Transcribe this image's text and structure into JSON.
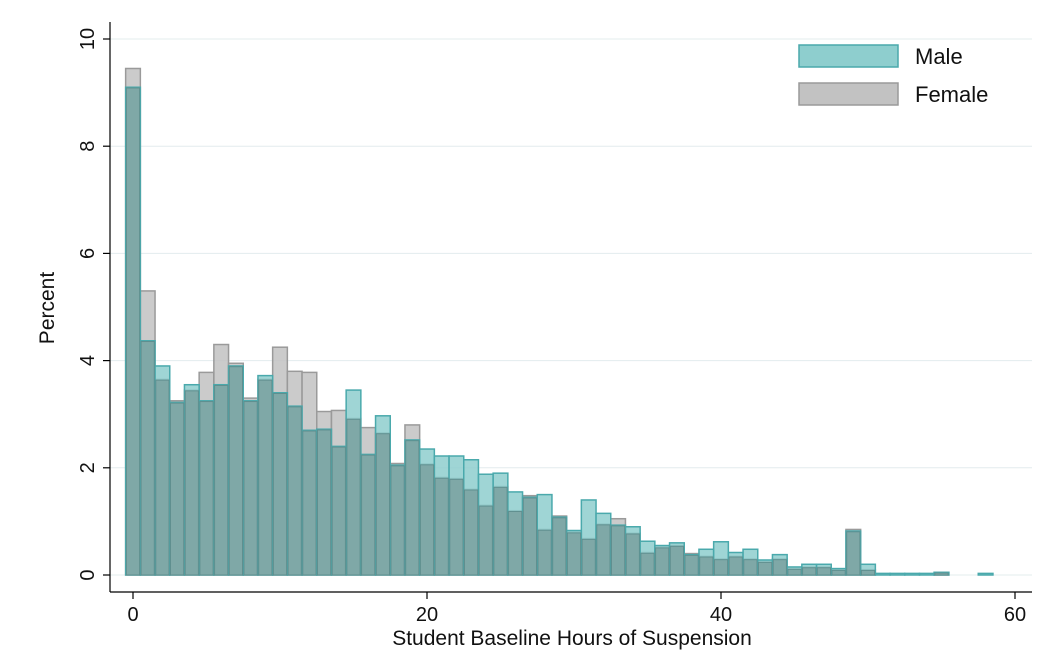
{
  "chart_data": {
    "type": "bar",
    "xlabel": "Student Baseline Hours of Suspension",
    "ylabel": "Percent",
    "xlim": [
      -1,
      61
    ],
    "ylim": [
      0,
      10
    ],
    "xticks": [
      0,
      20,
      40,
      60
    ],
    "yticks": [
      0,
      2,
      4,
      6,
      8,
      10
    ],
    "grid": "horizontal",
    "legend": "top-right",
    "bin_width": 1,
    "x": [
      0,
      1,
      2,
      3,
      4,
      5,
      6,
      7,
      8,
      9,
      10,
      11,
      12,
      13,
      14,
      15,
      16,
      17,
      18,
      19,
      20,
      21,
      22,
      23,
      24,
      25,
      26,
      27,
      28,
      29,
      30,
      31,
      32,
      33,
      34,
      35,
      36,
      37,
      38,
      39,
      40,
      41,
      42,
      43,
      44,
      45,
      46,
      47,
      48,
      49,
      50,
      51,
      52,
      53,
      54,
      55,
      56,
      57,
      58
    ],
    "series": [
      {
        "name": "Male",
        "color": "#8ecece",
        "edge": "#4aa9ac",
        "values": [
          9.1,
          4.37,
          3.9,
          3.22,
          3.55,
          3.25,
          3.55,
          3.9,
          3.25,
          3.72,
          3.4,
          3.15,
          2.7,
          2.72,
          2.4,
          3.45,
          2.25,
          2.97,
          2.05,
          2.52,
          2.35,
          2.22,
          2.22,
          2.15,
          1.88,
          1.9,
          1.55,
          1.45,
          1.5,
          1.08,
          0.83,
          1.4,
          1.15,
          0.93,
          0.9,
          0.63,
          0.55,
          0.6,
          0.38,
          0.48,
          0.62,
          0.42,
          0.48,
          0.28,
          0.38,
          0.15,
          0.2,
          0.2,
          0.12,
          0.82,
          0.2,
          0.03,
          0.03,
          0.03,
          0.03,
          0.05,
          0,
          0,
          0.03
        ]
      },
      {
        "name": "Female",
        "color": "#c2c2c2",
        "edge": "#9a9a9a",
        "values": [
          9.45,
          5.3,
          3.65,
          3.25,
          3.45,
          3.78,
          4.3,
          3.95,
          3.3,
          3.65,
          4.25,
          3.8,
          3.78,
          3.05,
          3.07,
          2.92,
          2.75,
          2.65,
          2.08,
          2.8,
          2.07,
          1.82,
          1.8,
          1.6,
          1.3,
          1.65,
          1.2,
          1.48,
          0.85,
          1.1,
          0.8,
          0.68,
          0.95,
          1.05,
          0.78,
          0.42,
          0.52,
          0.55,
          0.4,
          0.35,
          0.3,
          0.35,
          0.3,
          0.25,
          0.3,
          0.12,
          0.15,
          0.15,
          0.1,
          0.85,
          0.1,
          0,
          0,
          0,
          0,
          0.05,
          0,
          0,
          0
        ]
      }
    ]
  }
}
